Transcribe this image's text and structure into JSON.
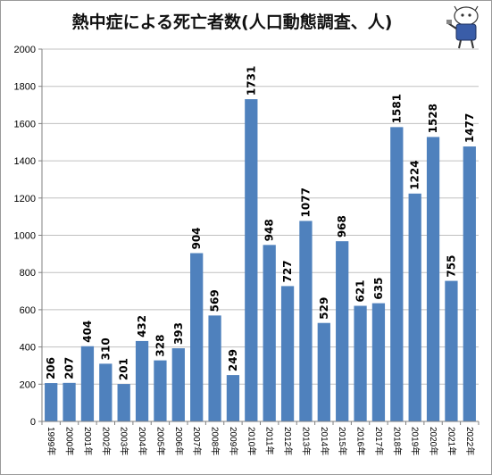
{
  "chart_data": {
    "type": "bar",
    "title": "熱中症による死亡者数(人口動態調査、人)",
    "categories": [
      "1999年",
      "2000年",
      "2001年",
      "2002年",
      "2003年",
      "2004年",
      "2005年",
      "2006年",
      "2007年",
      "2008年",
      "2009年",
      "2010年",
      "2011年",
      "2012年",
      "2013年",
      "2014年",
      "2015年",
      "2016年",
      "2017年",
      "2018年",
      "2019年",
      "2020年",
      "2021年",
      "2022年"
    ],
    "values": [
      206,
      207,
      404,
      310,
      201,
      432,
      328,
      393,
      904,
      569,
      249,
      1731,
      948,
      727,
      1077,
      529,
      968,
      621,
      635,
      1581,
      1224,
      1528,
      755,
      1477
    ],
    "ylim": [
      0,
      2000
    ],
    "yticks": [
      0,
      200,
      400,
      600,
      800,
      1000,
      1200,
      1400,
      1600,
      1800,
      2000
    ],
    "grid": true,
    "bar_color": "#4f81bd",
    "grid_color": "#c0c0c0",
    "data_labels": "vertical, above bars",
    "legend": "none",
    "mascot_icon": "mascot-character-icon"
  }
}
